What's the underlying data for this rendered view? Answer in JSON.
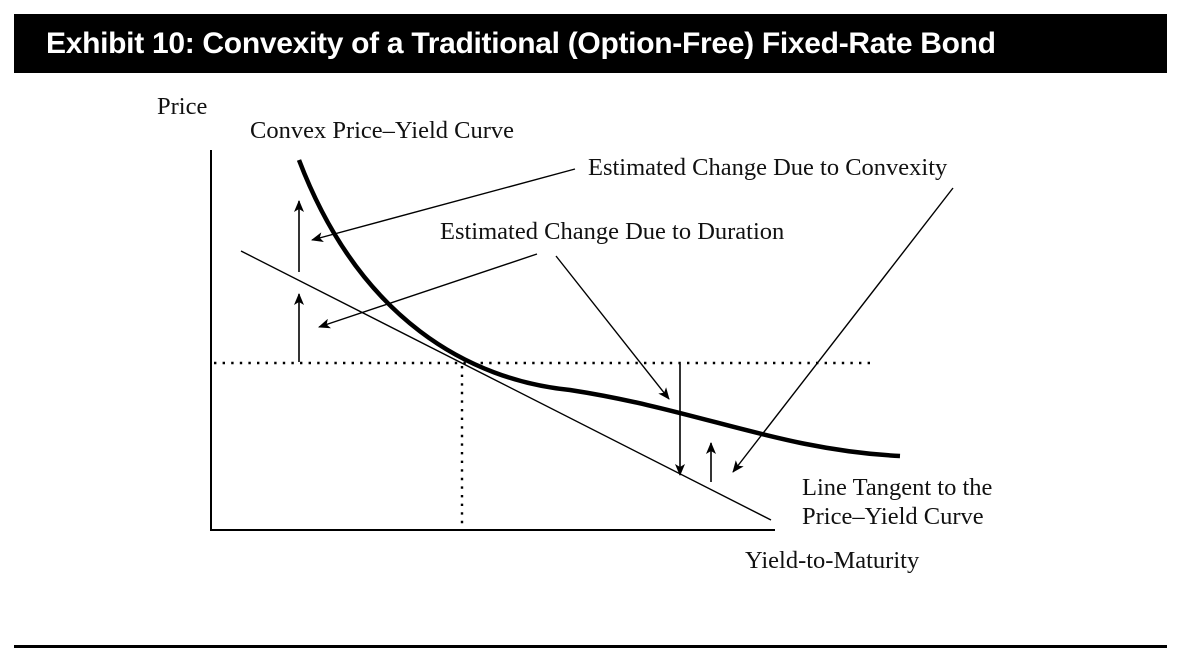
{
  "title": "Exhibit 10: Convexity of a Traditional (Option-Free) Fixed-Rate Bond",
  "labels": {
    "y_axis": "Price",
    "x_axis": "Yield-to-Maturity",
    "curve": "Convex Price–Yield Curve",
    "convexity": "Estimated Change Due to Convexity",
    "duration": "Estimated Change Due to Duration",
    "tangent_line1": "Line Tangent to the",
    "tangent_line2": "Price–Yield Curve"
  },
  "colors": {
    "ink": "#000000",
    "title_bar": "#000000",
    "title_text": "#ffffff"
  }
}
